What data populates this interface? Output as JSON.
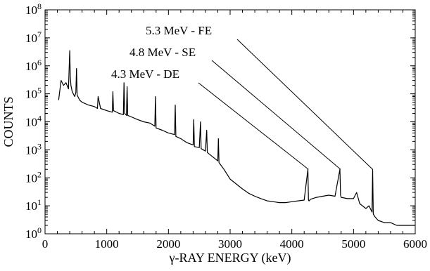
{
  "chart_data": {
    "type": "line",
    "title": "",
    "xlabel": "γ-RAY ENERGY (keV)",
    "ylabel": "COUNTS",
    "xlim": [
      0,
      6000
    ],
    "ylim": [
      1,
      100000000
    ],
    "yscale": "log",
    "grid": false,
    "legend": "none",
    "x_ticks": [
      0,
      1000,
      2000,
      3000,
      4000,
      5000,
      6000
    ],
    "x_tick_labels": [
      "0",
      "1000",
      "2000",
      "3000",
      "4000",
      "5000",
      "6000"
    ],
    "y_tick_exponents": [
      0,
      1,
      2,
      3,
      4,
      5,
      6,
      7,
      8
    ],
    "y_tick_base": "10",
    "series": [
      {
        "color": "#000000",
        "x": [
          220,
          260,
          300,
          340,
          380,
          400,
          410,
          420,
          440,
          480,
          500,
          510,
          520,
          560,
          600,
          700,
          800,
          850,
          860,
          900,
          1000,
          1090,
          1100,
          1110,
          1200,
          1270,
          1280,
          1290,
          1320,
          1330,
          1340,
          1400,
          1500,
          1600,
          1700,
          1780,
          1790,
          1800,
          1900,
          2000,
          2100,
          2110,
          2120,
          2200,
          2300,
          2400,
          2410,
          2420,
          2500,
          2520,
          2530,
          2600,
          2620,
          2630,
          2700,
          2800,
          2810,
          2820,
          2900,
          3000,
          3100,
          3200,
          3300,
          3400,
          3500,
          3600,
          3700,
          3800,
          3900,
          4000,
          4100,
          4200,
          4260,
          4270,
          4280,
          4300,
          4400,
          4500,
          4600,
          4700,
          4780,
          4790,
          4800,
          4900,
          5000,
          5050,
          5100,
          5200,
          5250,
          5300,
          5310,
          5320,
          5350,
          5400,
          5500,
          5600,
          5700,
          5800,
          5900,
          6000
        ],
        "y": [
          60000,
          300000,
          200000,
          250000,
          150000,
          3500000,
          400000,
          200000,
          120000,
          80000,
          110000,
          800000,
          90000,
          60000,
          50000,
          40000,
          35000,
          30000,
          80000,
          30000,
          25000,
          22000,
          120000,
          25000,
          20000,
          18000,
          250000,
          20000,
          17000,
          180000,
          17000,
          15000,
          12000,
          10000,
          9000,
          7000,
          80000,
          6000,
          5000,
          4000,
          3500,
          40000,
          3000,
          2500,
          1800,
          1500,
          12000,
          1300,
          1200,
          10000,
          1100,
          900,
          5000,
          800,
          600,
          400,
          2500,
          350,
          200,
          90,
          60,
          40,
          28,
          22,
          18,
          15,
          14,
          13,
          13,
          14,
          15,
          16,
          200,
          16,
          15,
          17,
          20,
          22,
          24,
          22,
          200,
          24,
          20,
          18,
          18,
          30,
          12,
          8,
          10,
          6,
          200,
          5,
          4,
          3,
          2.5,
          2.5,
          2,
          2,
          2,
          2
        ]
      }
    ],
    "annotations": [
      {
        "label": "5.3 MeV - FE",
        "x": 5310,
        "y": 200
      },
      {
        "label": "4.8 MeV - SE",
        "x": 4790,
        "y": 200
      },
      {
        "label": "4.3 MeV - DE",
        "x": 4270,
        "y": 200
      }
    ]
  }
}
